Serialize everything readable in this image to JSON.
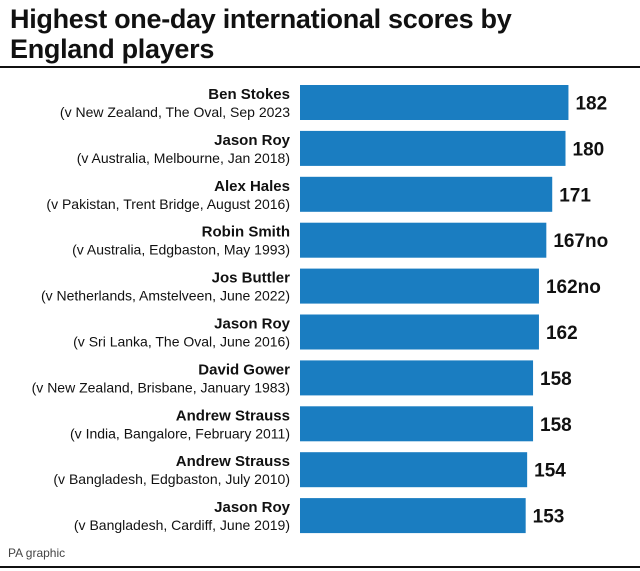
{
  "chart_data": {
    "type": "bar",
    "orientation": "horizontal",
    "title": "Highest one-day international scores by England players",
    "categories": [
      "Ben Stokes",
      "Jason Roy",
      "Alex Hales",
      "Robin Smith",
      "Jos Buttler",
      "Jason Roy",
      "David Gower",
      "Andrew Strauss",
      "Andrew Strauss",
      "Jason Roy"
    ],
    "details": [
      "(v New Zealand, The Oval, Sep 2023",
      "(v Australia, Melbourne, Jan 2018)",
      "(v Pakistan, Trent Bridge, August 2016)",
      "(v Australia, Edgbaston, May 1993)",
      "(v Netherlands, Amstelveen, June 2022)",
      "(v Sri Lanka, The Oval, June 2016)",
      "(v New Zealand, Brisbane, January 1983)",
      "(v India, Bangalore, February 2011)",
      "(v Bangladesh, Edgbaston, July 2010)",
      "(v Bangladesh, Cardiff, June 2019)"
    ],
    "values": [
      182,
      180,
      171,
      167,
      162,
      162,
      158,
      158,
      154,
      153
    ],
    "value_labels": [
      "182",
      "180",
      "171",
      "167no",
      "162no",
      "162",
      "158",
      "158",
      "154",
      "153"
    ],
    "color": "#1a7dc1",
    "xlim": [
      0,
      200
    ],
    "source": "PA graphic"
  }
}
